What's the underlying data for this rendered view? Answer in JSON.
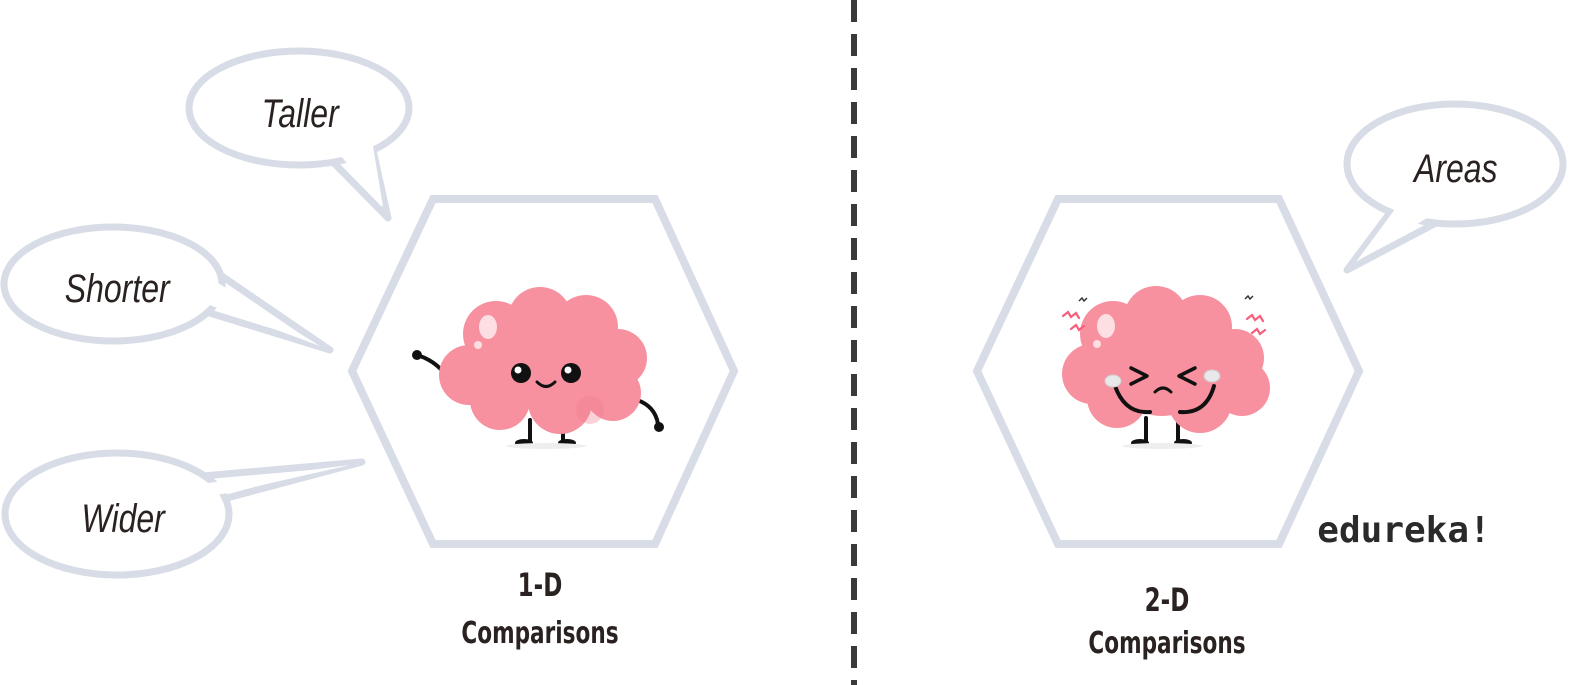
{
  "left_panel": {
    "bubbles": {
      "taller": "Taller",
      "shorter": "Shorter",
      "wider": "Wider"
    },
    "caption_line1": "1-D",
    "caption_line2": "Comparisons"
  },
  "right_panel": {
    "bubble": "Areas",
    "caption_line1": "2-D",
    "caption_line2": "Comparisons",
    "logo": "edureka!"
  },
  "colors": {
    "brain_pink": "#f7919f",
    "hexagon_outline": "#d7dce6",
    "divider": "#3a3a3a",
    "text": "#2a2220"
  },
  "icons": [
    "happy-brain-mascot",
    "stressed-brain-mascot"
  ]
}
